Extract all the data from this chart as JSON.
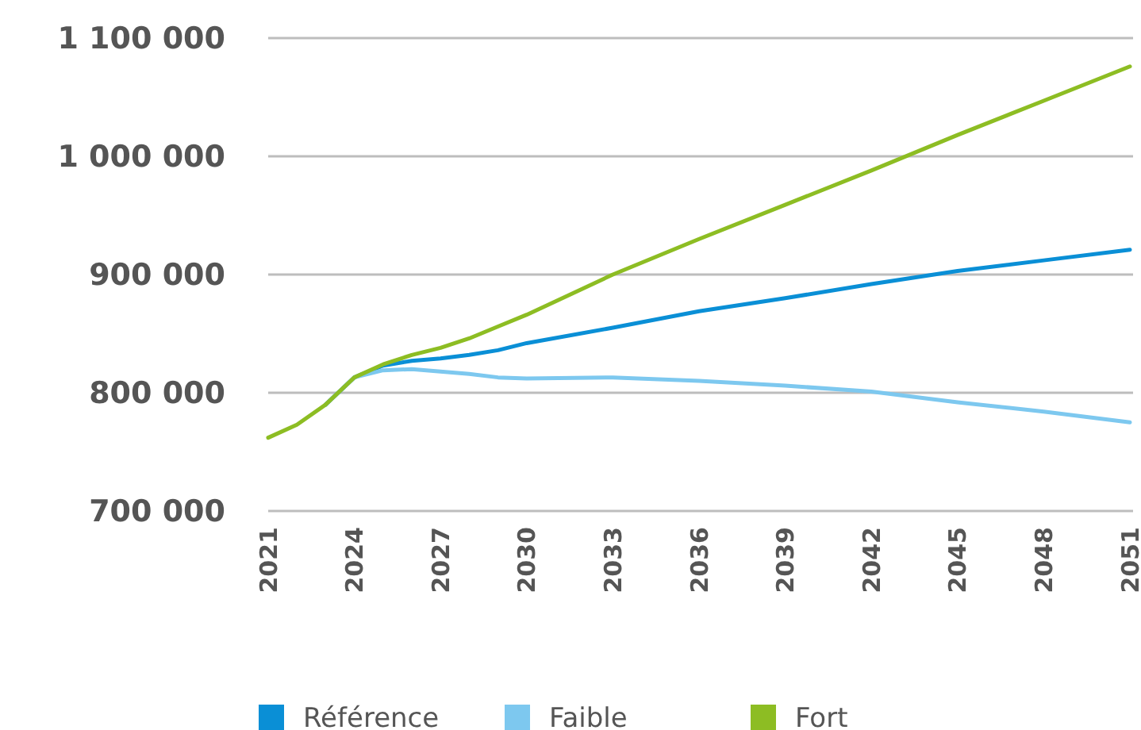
{
  "chart_data": {
    "type": "line",
    "x": [
      2021,
      2022,
      2023,
      2024,
      2025,
      2026,
      2027,
      2028,
      2029,
      2030,
      2033,
      2036,
      2039,
      2042,
      2045,
      2048,
      2051
    ],
    "series": [
      {
        "name": "Référence",
        "color": "#0a8fd6",
        "values": [
          null,
          null,
          790000,
          813000,
          823000,
          827000,
          829000,
          832000,
          836000,
          842000,
          855000,
          869000,
          880000,
          892000,
          903000,
          912000,
          921000
        ]
      },
      {
        "name": "Faible",
        "color": "#7dc8ef",
        "values": [
          null,
          null,
          790000,
          813000,
          819000,
          820000,
          818000,
          816000,
          813000,
          812000,
          813000,
          810000,
          806000,
          801000,
          792000,
          784000,
          775000
        ]
      },
      {
        "name": "Fort",
        "color": "#8dbd23",
        "values": [
          762000,
          773000,
          790000,
          813000,
          824000,
          832000,
          838000,
          846000,
          856000,
          866000,
          900000,
          930000,
          959000,
          988000,
          1018000,
          1047000,
          1076000
        ]
      }
    ],
    "xlim": [
      2021,
      2051
    ],
    "xticks": [
      2021,
      2024,
      2027,
      2030,
      2033,
      2036,
      2039,
      2042,
      2045,
      2048,
      2051
    ],
    "ylim": [
      700000,
      1100000
    ],
    "yticks": [
      {
        "value": 700000,
        "label": "700 000"
      },
      {
        "value": 800000,
        "label": "800 000"
      },
      {
        "value": 900000,
        "label": "900 000"
      },
      {
        "value": 1000000,
        "label": "1 000 000"
      },
      {
        "value": 1100000,
        "label": "1 100 000"
      }
    ],
    "grid": "y",
    "legend": "bottom",
    "marker": "none",
    "line_style": "solid"
  }
}
